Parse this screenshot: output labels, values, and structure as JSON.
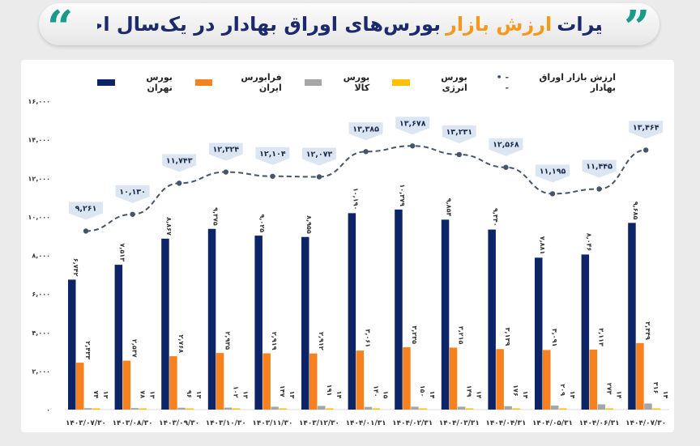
{
  "title": {
    "part1": "تغییرات",
    "accent": "ارزش بازار",
    "part2": "بورس‌های اوراق بهادار در یک‌سال اخیر"
  },
  "colors": {
    "tehran": "#0d2466",
    "farabourse": "#f5821f",
    "kala": "#a6a6a6",
    "energy": "#ffc000",
    "line": "#44546a",
    "callout": "#dce6f2",
    "title_accent": "#f39a1e",
    "quote": "#1b9a8a"
  },
  "chart_data": {
    "type": "bar",
    "legend_position": "top",
    "grid": false,
    "ylim": [
      0,
      16000
    ],
    "yticks": [
      "۰",
      "۲,۰۰۰",
      "۴,۰۰۰",
      "۶,۰۰۰",
      "۸,۰۰۰",
      "۱۰,۰۰۰",
      "۱۲,۰۰۰",
      "۱۴,۰۰۰",
      "۱۶,۰۰۰"
    ],
    "categories": [
      "۱۴۰۳/۰۷/۳۰",
      "۱۴۰۳/۰۸/۳۰",
      "۱۴۰۳/۰۹/۳۰",
      "۱۴۰۳/۱۰/۳۰",
      "۱۴۰۳/۱۱/۳۰",
      "۱۴۰۳/۱۲/۳۰",
      "۱۴۰۴/۰۱/۳۱",
      "۱۴۰۴/۰۲/۳۱",
      "۱۴۰۴/۰۳/۳۱",
      "۱۴۰۴/۰۴/۳۱",
      "۱۴۰۴/۰۵/۳۱",
      "۱۴۰۴/۰۶/۳۱",
      "۱۴۰۴/۰۷/۳۰"
    ],
    "series": [
      {
        "name": "بورس تهران",
        "kind": "bar",
        "color": "#0d2466",
        "values": [
          6742,
          7513,
          8867,
          9375,
          9025,
          8955,
          10190,
          10379,
          9854,
          9340,
          7881,
          8046,
          9685
        ]
      },
      {
        "name": "فرابورس ایران",
        "kind": "bar",
        "color": "#f5821f",
        "values": [
          2433,
          2537,
          2768,
          2935,
          2919,
          2912,
          3061,
          3235,
          3215,
          3139,
          3091,
          3113,
          3449
        ]
      },
      {
        "name": "بورس کالا",
        "kind": "bar",
        "color": "#a6a6a6",
        "values": [
          74,
          78,
          96,
          102,
          147,
          191,
          140,
          150,
          149,
          176,
          209,
          273,
          316
        ]
      },
      {
        "name": "بورس انرژی",
        "kind": "bar",
        "color": "#ffc000",
        "values": [
          13,
          13,
          13,
          13,
          13,
          14,
          15,
          14,
          14,
          14,
          14,
          14,
          14
        ]
      },
      {
        "name": "ارزش بازار اوراق بهادار",
        "kind": "line-dashed",
        "color": "#44546a",
        "values": [
          9261,
          10130,
          11743,
          12324,
          12104,
          12073,
          13385,
          13678,
          13231,
          12568,
          11195,
          11445,
          13464
        ]
      }
    ]
  }
}
